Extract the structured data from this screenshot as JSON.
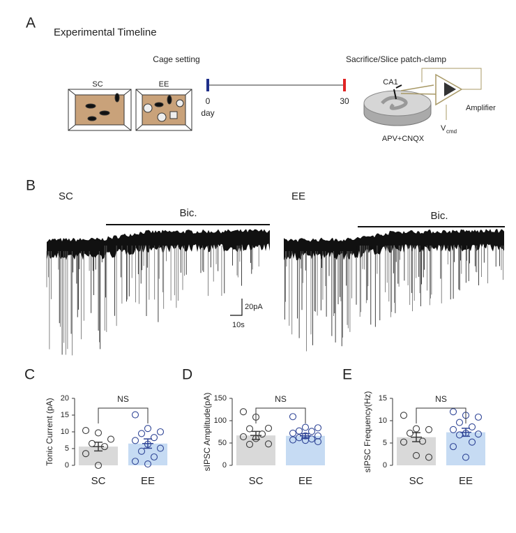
{
  "figure_a": {
    "label": "A",
    "title": "Experimental Timeline",
    "cage_title": "Cage setting",
    "cages": [
      "SC",
      "EE"
    ],
    "timeline_start": "0",
    "timeline_unit": "day",
    "timeline_end": "30",
    "recording_title": "Sacrifice/Slice patch-clamp",
    "region": "CA1",
    "amplifier": "Amplifier",
    "voltage": "V",
    "voltage_sub": "cmd",
    "drugs": "APV+CNQX"
  },
  "figure_b": {
    "label": "B",
    "traces": [
      {
        "name": "SC",
        "drug": "Bic."
      },
      {
        "name": "EE",
        "drug": "Bic."
      }
    ],
    "scale_y": "20pA",
    "scale_x": "10s"
  },
  "chart_data": [
    {
      "type": "bar",
      "panel": "C",
      "ylabel": "Tonic Current (pA)",
      "categories": [
        "SC",
        "EE"
      ],
      "values": [
        5.6,
        6.5
      ],
      "errors": [
        1.3,
        1.4
      ],
      "colors": [
        "#d9d9d9",
        "#c6dbf3"
      ],
      "point_colors": [
        "#3a3a3a",
        "#2f4596"
      ],
      "points": [
        [
          10.4,
          9.7,
          7.8,
          6.5,
          5.6,
          3.5,
          0.0
        ],
        [
          15.1,
          11.0,
          10.0,
          9.5,
          8.3,
          7.4,
          6.3,
          5.1,
          4.2,
          2.5,
          1.2,
          0.4
        ]
      ],
      "ylim": [
        0,
        20
      ],
      "yticks": [
        0,
        5,
        10,
        15,
        20
      ],
      "annotation": "NS"
    },
    {
      "type": "bar",
      "panel": "D",
      "ylabel": "sIPSC Amplitude(pA)",
      "categories": [
        "SC",
        "EE"
      ],
      "values": [
        67,
        66
      ],
      "errors": [
        9,
        5
      ],
      "colors": [
        "#d9d9d9",
        "#c6dbf3"
      ],
      "point_colors": [
        "#3a3a3a",
        "#2f4596"
      ],
      "points": [
        [
          120,
          108,
          83,
          82,
          70,
          64,
          60,
          48,
          47
        ],
        [
          109,
          85,
          84,
          77,
          76,
          72,
          66,
          66,
          62,
          59,
          57,
          56,
          53
        ]
      ],
      "ylim": [
        0,
        150
      ],
      "yticks": [
        0,
        50,
        100,
        150
      ],
      "annotation": "NS"
    },
    {
      "type": "bar",
      "panel": "E",
      "ylabel": "sIPSC Frequency(Hz)",
      "categories": [
        "SC",
        "EE"
      ],
      "values": [
        6.3,
        7.4
      ],
      "errors": [
        1.0,
        0.9
      ],
      "colors": [
        "#d9d9d9",
        "#c6dbf3"
      ],
      "point_colors": [
        "#3a3a3a",
        "#2f4596"
      ],
      "points": [
        [
          11.2,
          8.2,
          8.0,
          7.2,
          5.4,
          5.2,
          2.2,
          1.8
        ],
        [
          12.0,
          11.2,
          10.8,
          9.6,
          8.6,
          8.0,
          7.2,
          7.0,
          6.8,
          5.2,
          4.2,
          1.8
        ]
      ],
      "ylim": [
        0,
        15
      ],
      "yticks": [
        0,
        5,
        10,
        15
      ],
      "annotation": "NS"
    }
  ]
}
